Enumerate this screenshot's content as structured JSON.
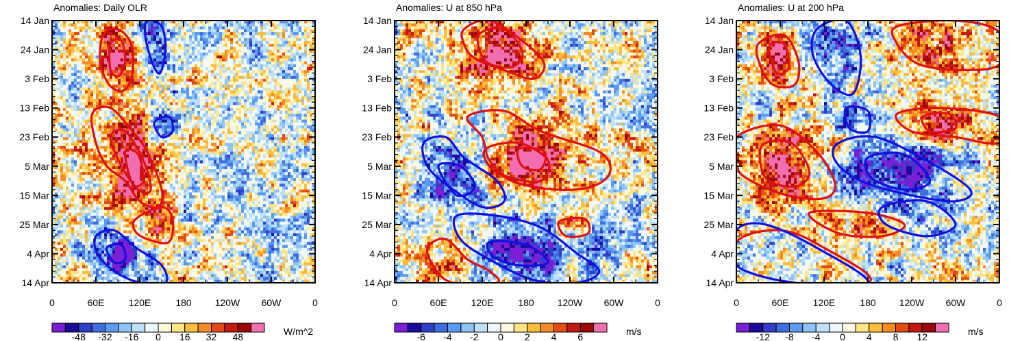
{
  "chart_data": [
    {
      "type": "heatmap",
      "title": "Anomalies: Daily OLR",
      "units": "W/m^2",
      "x_tick_labels": [
        "0",
        "60E",
        "120E",
        "180",
        "120W",
        "60W",
        "0"
      ],
      "y_tick_labels": [
        "14 Jan",
        "24 Jan",
        "3 Feb",
        "13 Feb",
        "23 Feb",
        "5 Mar",
        "15 Mar",
        "25 Mar",
        "4 Apr",
        "14 Apr"
      ],
      "colorbar_labels": [
        "-48",
        "-32",
        "-16",
        "0",
        "16",
        "32",
        "48"
      ],
      "colorbar_levels": [
        -56,
        -48,
        -40,
        -32,
        -24,
        -16,
        -8,
        0,
        8,
        16,
        24,
        32,
        40,
        48,
        56
      ],
      "xlim": [
        0,
        360
      ],
      "ylim_days": [
        0,
        90
      ],
      "contours": [
        {
          "color": "#e01010",
          "points": [
            [
              70,
              5
            ],
            [
              90,
              3
            ],
            [
              108,
              8
            ],
            [
              110,
              18
            ],
            [
              98,
              24
            ],
            [
              78,
              22
            ],
            [
              66,
              14
            ]
          ]
        },
        {
          "color": "#e01010",
          "points": [
            [
              80,
              8
            ],
            [
              95,
              7
            ],
            [
              100,
              14
            ],
            [
              92,
              19
            ],
            [
              80,
              17
            ]
          ]
        },
        {
          "color": "#e01010",
          "points": [
            [
              55,
              32
            ],
            [
              80,
              30
            ],
            [
              110,
              38
            ],
            [
              130,
              45
            ],
            [
              150,
              58
            ],
            [
              145,
              64
            ],
            [
              120,
              62
            ],
            [
              100,
              55
            ],
            [
              75,
              50
            ],
            [
              60,
              42
            ]
          ]
        },
        {
          "color": "#e01010",
          "points": [
            [
              80,
              40
            ],
            [
              100,
              38
            ],
            [
              125,
              48
            ],
            [
              135,
              58
            ],
            [
              118,
              58
            ],
            [
              95,
              50
            ]
          ]
        },
        {
          "color": "#e01010",
          "points": [
            [
              100,
              45
            ],
            [
              118,
              46
            ],
            [
              125,
              55
            ],
            [
              110,
              56
            ]
          ]
        },
        {
          "color": "#e01010",
          "points": [
            [
              115,
              68
            ],
            [
              150,
              64
            ],
            [
              165,
              68
            ],
            [
              160,
              76
            ],
            [
              130,
              75
            ],
            [
              113,
              72
            ]
          ]
        },
        {
          "color": "#1010e0",
          "points": [
            [
              130,
              0
            ],
            [
              150,
              2
            ],
            [
              155,
              10
            ],
            [
              148,
              18
            ],
            [
              138,
              15
            ],
            [
              128,
              6
            ]
          ]
        },
        {
          "color": "#1010e0",
          "points": [
            [
              140,
              35
            ],
            [
              160,
              33
            ],
            [
              165,
              38
            ],
            [
              150,
              40
            ]
          ]
        },
        {
          "color": "#1010e0",
          "points": [
            [
              60,
              74
            ],
            [
              85,
              72
            ],
            [
              115,
              78
            ],
            [
              150,
              84
            ],
            [
              155,
              90
            ],
            [
              120,
              90
            ],
            [
              85,
              86
            ],
            [
              62,
              80
            ]
          ]
        },
        {
          "color": "#1010e0",
          "points": [
            [
              75,
              78
            ],
            [
              95,
              77
            ],
            [
              100,
              82
            ],
            [
              85,
              83
            ]
          ]
        }
      ]
    },
    {
      "type": "heatmap",
      "title": "Anomalies: U at 850 hPa",
      "units": "m/s",
      "x_tick_labels": [
        "0",
        "60E",
        "120E",
        "180",
        "120W",
        "60W",
        "0"
      ],
      "y_tick_labels": [
        "14 Jan",
        "24 Jan",
        "3 Feb",
        "13 Feb",
        "23 Feb",
        "5 Mar",
        "15 Mar",
        "25 Mar",
        "4 Apr",
        "14 Apr"
      ],
      "colorbar_labels": [
        "-6",
        "-4",
        "-2",
        "0",
        "2",
        "4",
        "6"
      ],
      "colorbar_levels": [
        -7,
        -6,
        -5,
        -4,
        -3,
        -2,
        -1,
        0,
        1,
        2,
        3,
        4,
        5,
        6,
        7
      ],
      "xlim": [
        0,
        360
      ],
      "ylim_days": [
        0,
        90
      ],
      "contours": [
        {
          "color": "#e01010",
          "points": [
            [
              95,
              3
            ],
            [
              130,
              0
            ],
            [
              180,
              8
            ],
            [
              205,
              15
            ],
            [
              190,
              20
            ],
            [
              150,
              17
            ],
            [
              110,
              13
            ],
            [
              95,
              8
            ]
          ]
        },
        {
          "color": "#e01010",
          "points": [
            [
              115,
              5
            ],
            [
              150,
              3
            ],
            [
              175,
              11
            ],
            [
              160,
              16
            ],
            [
              125,
              14
            ]
          ]
        },
        {
          "color": "#e01010",
          "points": [
            [
              100,
              33
            ],
            [
              150,
              31
            ],
            [
              200,
              38
            ],
            [
              280,
              45
            ],
            [
              295,
              52
            ],
            [
              270,
              57
            ],
            [
              220,
              58
            ],
            [
              160,
              55
            ],
            [
              130,
              48
            ],
            [
              120,
              40
            ]
          ]
        },
        {
          "color": "#e01010",
          "points": [
            [
              125,
              44
            ],
            [
              170,
              42
            ],
            [
              210,
              48
            ],
            [
              200,
              55
            ],
            [
              160,
              54
            ],
            [
              130,
              50
            ]
          ]
        },
        {
          "color": "#e01010",
          "points": [
            [
              170,
              44
            ],
            [
              205,
              45
            ],
            [
              200,
              51
            ],
            [
              175,
              50
            ]
          ]
        },
        {
          "color": "#e01010",
          "points": [
            [
              225,
              69
            ],
            [
              260,
              68
            ],
            [
              265,
              73
            ],
            [
              235,
              74
            ]
          ]
        },
        {
          "color": "#e01010",
          "points": [
            [
              45,
              78
            ],
            [
              70,
              75
            ],
            [
              100,
              82
            ],
            [
              130,
              86
            ],
            [
              140,
              90
            ],
            [
              80,
              90
            ],
            [
              55,
              85
            ]
          ]
        },
        {
          "color": "#1010e0",
          "points": [
            [
              40,
              42
            ],
            [
              70,
              40
            ],
            [
              95,
              47
            ],
            [
              140,
              55
            ],
            [
              150,
              62
            ],
            [
              120,
              64
            ],
            [
              75,
              57
            ],
            [
              45,
              50
            ]
          ]
        },
        {
          "color": "#1010e0",
          "points": [
            [
              60,
              50
            ],
            [
              90,
              50
            ],
            [
              110,
              57
            ],
            [
              85,
              60
            ]
          ]
        },
        {
          "color": "#1010e0",
          "points": [
            [
              85,
              67
            ],
            [
              140,
              67
            ],
            [
              200,
              71
            ],
            [
              250,
              80
            ],
            [
              280,
              86
            ],
            [
              250,
              90
            ],
            [
              190,
              89
            ],
            [
              130,
              82
            ],
            [
              90,
              75
            ]
          ]
        },
        {
          "color": "#1010e0",
          "points": [
            [
              130,
              76
            ],
            [
              180,
              77
            ],
            [
              210,
              83
            ],
            [
              170,
              84
            ],
            [
              135,
              81
            ]
          ]
        }
      ]
    },
    {
      "type": "heatmap",
      "title": "Anomalies: U at 200 hPa",
      "units": "m/s",
      "x_tick_labels": [
        "0",
        "60E",
        "120E",
        "180",
        "120W",
        "60W",
        "0"
      ],
      "y_tick_labels": [
        "14 Jan",
        "24 Jan",
        "3 Feb",
        "13 Feb",
        "23 Feb",
        "5 Mar",
        "15 Mar",
        "25 Mar",
        "4 Apr",
        "14 Apr"
      ],
      "colorbar_labels": [
        "-12",
        "-8",
        "-4",
        "0",
        "4",
        "8",
        "12"
      ],
      "colorbar_levels": [
        -14,
        -12,
        -10,
        -8,
        -6,
        -4,
        -2,
        0,
        2,
        4,
        6,
        8,
        10,
        12,
        14
      ],
      "xlim": [
        0,
        360
      ],
      "ylim_days": [
        0,
        90
      ],
      "contours": [
        {
          "color": "#e01010",
          "points": [
            [
              30,
              8
            ],
            [
              65,
              5
            ],
            [
              85,
              14
            ],
            [
              80,
              22
            ],
            [
              50,
              22
            ],
            [
              32,
              15
            ]
          ]
        },
        {
          "color": "#e01010",
          "points": [
            [
              45,
              9
            ],
            [
              65,
              8
            ],
            [
              72,
              16
            ],
            [
              55,
              18
            ]
          ]
        },
        {
          "color": "#e01010",
          "points": [
            [
              220,
              2
            ],
            [
              300,
              0
            ],
            [
              360,
              4
            ],
            [
              360,
              15
            ],
            [
              310,
              17
            ],
            [
              250,
              15
            ],
            [
              220,
              8
            ]
          ]
        },
        {
          "color": "#e01010",
          "points": [
            [
              220,
              32
            ],
            [
              280,
              30
            ],
            [
              360,
              33
            ],
            [
              360,
              42
            ],
            [
              300,
              40
            ],
            [
              240,
              38
            ]
          ]
        },
        {
          "color": "#e01010",
          "points": [
            [
              255,
              33
            ],
            [
              290,
              32
            ],
            [
              300,
              37
            ],
            [
              265,
              38
            ]
          ]
        },
        {
          "color": "#e01010",
          "points": [
            [
              0,
              40
            ],
            [
              60,
              36
            ],
            [
              110,
              45
            ],
            [
              135,
              56
            ],
            [
              120,
              61
            ],
            [
              70,
              60
            ],
            [
              20,
              55
            ],
            [
              0,
              50
            ]
          ]
        },
        {
          "color": "#e01010",
          "points": [
            [
              35,
              43
            ],
            [
              75,
              42
            ],
            [
              100,
              52
            ],
            [
              80,
              57
            ],
            [
              40,
              54
            ]
          ]
        },
        {
          "color": "#e01010",
          "points": [
            [
              0,
              76
            ],
            [
              60,
              72
            ],
            [
              120,
              78
            ],
            [
              180,
              90
            ],
            [
              0,
              90
            ]
          ]
        },
        {
          "color": "#e01010",
          "points": [
            [
              100,
              66
            ],
            [
              180,
              66
            ],
            [
              230,
              70
            ],
            [
              200,
              74
            ],
            [
              140,
              73
            ]
          ]
        },
        {
          "color": "#1010e0",
          "points": [
            [
              110,
              3
            ],
            [
              150,
              0
            ],
            [
              170,
              12
            ],
            [
              160,
              25
            ],
            [
              130,
              22
            ],
            [
              105,
              12
            ]
          ]
        },
        {
          "color": "#1010e0",
          "points": [
            [
              150,
              30
            ],
            [
              180,
              31
            ],
            [
              180,
              38
            ],
            [
              155,
              37
            ]
          ]
        },
        {
          "color": "#1010e0",
          "points": [
            [
              140,
              42
            ],
            [
              190,
              40
            ],
            [
              260,
              48
            ],
            [
              320,
              58
            ],
            [
              300,
              62
            ],
            [
              240,
              60
            ],
            [
              170,
              55
            ],
            [
              135,
              48
            ]
          ]
        },
        {
          "color": "#1010e0",
          "points": [
            [
              180,
              47
            ],
            [
              230,
              46
            ],
            [
              265,
              55
            ],
            [
              230,
              58
            ],
            [
              185,
              54
            ]
          ]
        },
        {
          "color": "#1010e0",
          "points": [
            [
              0,
              72
            ],
            [
              40,
              70
            ],
            [
              110,
              78
            ],
            [
              180,
              90
            ],
            [
              80,
              90
            ],
            [
              0,
              84
            ]
          ]
        },
        {
          "color": "#1010e0",
          "points": [
            [
              200,
              64
            ],
            [
              260,
              62
            ],
            [
              300,
              70
            ],
            [
              260,
              74
            ],
            [
              205,
              70
            ]
          ]
        }
      ]
    }
  ]
}
